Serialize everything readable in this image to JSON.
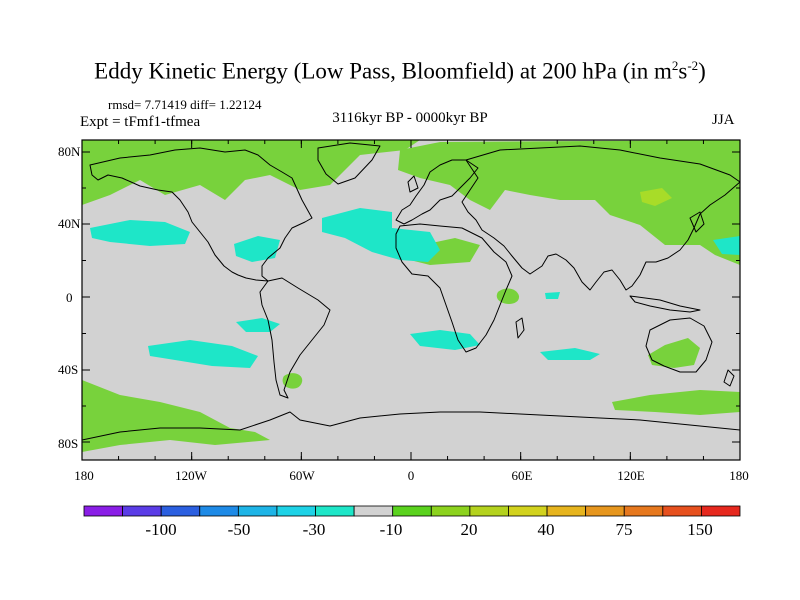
{
  "title": {
    "main": "Eddy Kinetic Energy (Low Pass, Bloomfield) at 200 hPa (in m",
    "sup1": "2",
    "mid": "s",
    "sup2": "-2",
    "end": ")"
  },
  "stats": "rmsd= 7.71419 diff= 1.22124",
  "expt": "Expt = tFmf1-tfmea",
  "period": "3116kyr BP - 0000kyr BP",
  "season": "JJA",
  "lat_labels": [
    "80N",
    "40N",
    "0",
    "40S",
    "80S"
  ],
  "lon_labels": [
    "180",
    "120W",
    "60W",
    "0",
    "60E",
    "120E",
    "180"
  ],
  "colorbar": {
    "labels": [
      "-100",
      "-50",
      "-30",
      "-10",
      "20",
      "40",
      "75",
      "150"
    ],
    "colors": [
      "#8a1ee6",
      "#5a3ce6",
      "#2b5fe0",
      "#1e8ae6",
      "#1eb4e6",
      "#1ed2e6",
      "#1ee6c8",
      "#d2d2d2",
      "#5ad21e",
      "#8cd21e",
      "#b4d21e",
      "#d2d21e",
      "#e6b41e",
      "#e6961e",
      "#e6781e",
      "#e6501e",
      "#e6281e"
    ]
  },
  "map_colors": {
    "background": "#d2d2d2",
    "positive": "#78d23c",
    "positive_strong": "#a8dc28",
    "negative": "#1ee6c8"
  }
}
